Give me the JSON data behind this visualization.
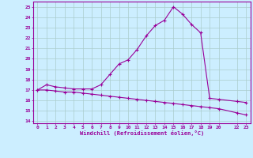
{
  "xlabel": "Windchill (Refroidissement éolien,°C)",
  "background_color": "#cceeff",
  "line_color": "#990099",
  "grid_color": "#aacccc",
  "x_upper": [
    0,
    1,
    2,
    3,
    4,
    5,
    6,
    7,
    8,
    9,
    10,
    11,
    12,
    13,
    14,
    15,
    16,
    17,
    18,
    19,
    20,
    22,
    23
  ],
  "y_upper": [
    17.0,
    17.5,
    17.3,
    17.2,
    17.1,
    17.1,
    17.1,
    17.5,
    18.5,
    19.5,
    19.9,
    20.9,
    22.2,
    23.2,
    23.7,
    25.0,
    24.3,
    23.3,
    22.5,
    16.2,
    16.1,
    15.9,
    15.8
  ],
  "x_lower": [
    0,
    1,
    2,
    3,
    4,
    5,
    6,
    7,
    8,
    9,
    10,
    11,
    12,
    13,
    14,
    15,
    16,
    17,
    18,
    19,
    20,
    22,
    23
  ],
  "y_lower": [
    17.0,
    17.0,
    16.9,
    16.8,
    16.8,
    16.7,
    16.6,
    16.5,
    16.4,
    16.3,
    16.2,
    16.1,
    16.0,
    15.9,
    15.8,
    15.7,
    15.6,
    15.5,
    15.4,
    15.3,
    15.2,
    14.8,
    14.6
  ],
  "ylim": [
    13.8,
    25.5
  ],
  "xlim": [
    -0.5,
    23.5
  ],
  "yticks": [
    14,
    15,
    16,
    17,
    18,
    19,
    20,
    21,
    22,
    23,
    24,
    25
  ],
  "xticks": [
    0,
    1,
    2,
    3,
    4,
    5,
    6,
    7,
    8,
    9,
    10,
    11,
    12,
    13,
    14,
    15,
    16,
    17,
    18,
    19,
    20,
    22,
    23
  ],
  "xtick_labels": [
    "0",
    "1",
    "2",
    "3",
    "4",
    "5",
    "6",
    "7",
    "8",
    "9",
    "10",
    "11",
    "12",
    "13",
    "14",
    "15",
    "16",
    "17",
    "18",
    "19",
    "20",
    "22",
    "23"
  ]
}
